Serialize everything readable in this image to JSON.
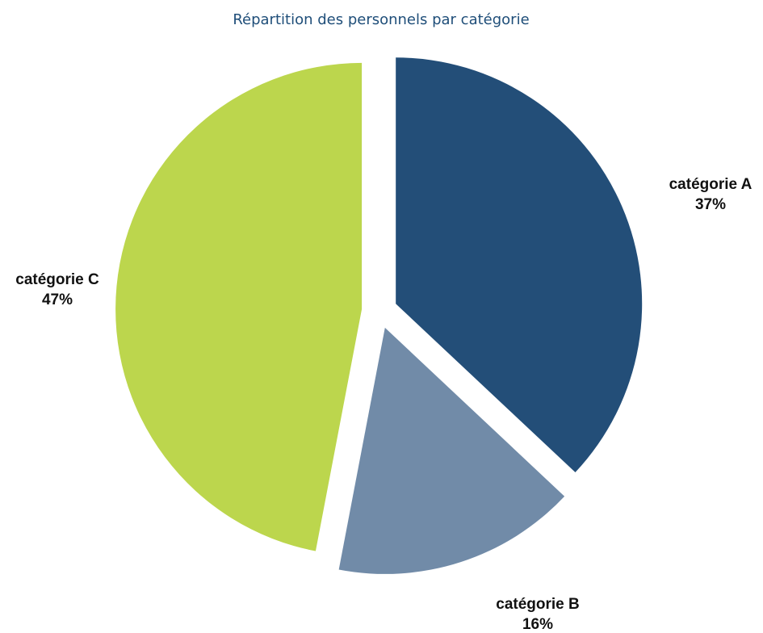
{
  "chart_data": {
    "type": "pie",
    "title": "Répartition des personnels par catégorie",
    "start_angle": "12 o'clock",
    "direction": "clockwise",
    "exploded": true,
    "slices": [
      {
        "label": "catégorie A",
        "percent_label": "37%",
        "value": 37,
        "color": "#234e78"
      },
      {
        "label": "catégorie B",
        "percent_label": "16%",
        "value": 16,
        "color": "#718ba8"
      },
      {
        "label": "catégorie C",
        "percent_label": "47%",
        "value": 47,
        "color": "#bcd64d"
      }
    ],
    "legend": "none",
    "title_color": "#1f4e79"
  }
}
